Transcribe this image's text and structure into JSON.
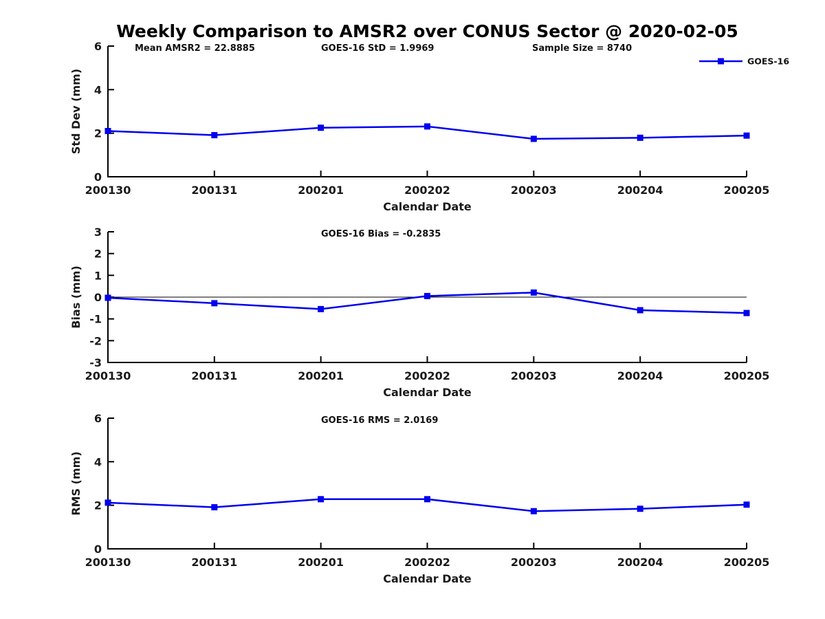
{
  "page": {
    "title": "Weekly Comparison to AMSR2 over CONUS Sector @ 2020-02-05"
  },
  "legend": {
    "label": "GOES-16",
    "marker": "square-icon"
  },
  "colors": {
    "series": "#0000EE",
    "axis": "#000000",
    "text": "#1a1a1a"
  },
  "chart_data": [
    {
      "type": "line",
      "name": "std-dev",
      "xlabel": "Calendar Date",
      "ylabel": "Std Dev (mm)",
      "ylim": [
        0,
        6
      ],
      "yticks": [
        0,
        2,
        4,
        6
      ],
      "zero_line": false,
      "grid": false,
      "legend_position": "top-right",
      "categories": [
        "200130",
        "200131",
        "200201",
        "200202",
        "200203",
        "200204",
        "200205"
      ],
      "series": [
        {
          "name": "GOES-16",
          "values": [
            2.1,
            1.91,
            2.25,
            2.31,
            1.74,
            1.79,
            1.89
          ]
        }
      ],
      "annotations": [
        "Mean AMSR2 = 22.8885",
        "GOES-16 StD = 1.9969",
        "Sample Size = 8740"
      ]
    },
    {
      "type": "line",
      "name": "bias",
      "xlabel": "Calendar Date",
      "ylabel": "Bias (mm)",
      "ylim": [
        -3,
        3
      ],
      "yticks": [
        -3,
        -2,
        -1,
        0,
        1,
        2,
        3
      ],
      "zero_line": true,
      "grid": false,
      "categories": [
        "200130",
        "200131",
        "200201",
        "200202",
        "200203",
        "200204",
        "200205"
      ],
      "series": [
        {
          "name": "GOES-16",
          "values": [
            -0.03,
            -0.28,
            -0.55,
            0.05,
            0.21,
            -0.6,
            -0.73
          ]
        }
      ],
      "annotations": [
        "GOES-16 Bias  = -0.2835"
      ]
    },
    {
      "type": "line",
      "name": "rms",
      "xlabel": "Calendar Date",
      "ylabel": "RMS (mm)",
      "ylim": [
        0,
        6
      ],
      "yticks": [
        0,
        2,
        4,
        6
      ],
      "zero_line": false,
      "grid": false,
      "categories": [
        "200130",
        "200131",
        "200201",
        "200202",
        "200203",
        "200204",
        "200205"
      ],
      "series": [
        {
          "name": "GOES-16",
          "values": [
            2.12,
            1.91,
            2.28,
            2.28,
            1.73,
            1.84,
            2.03
          ]
        }
      ],
      "annotations": [
        "GOES-16 RMS = 2.0169"
      ]
    }
  ]
}
